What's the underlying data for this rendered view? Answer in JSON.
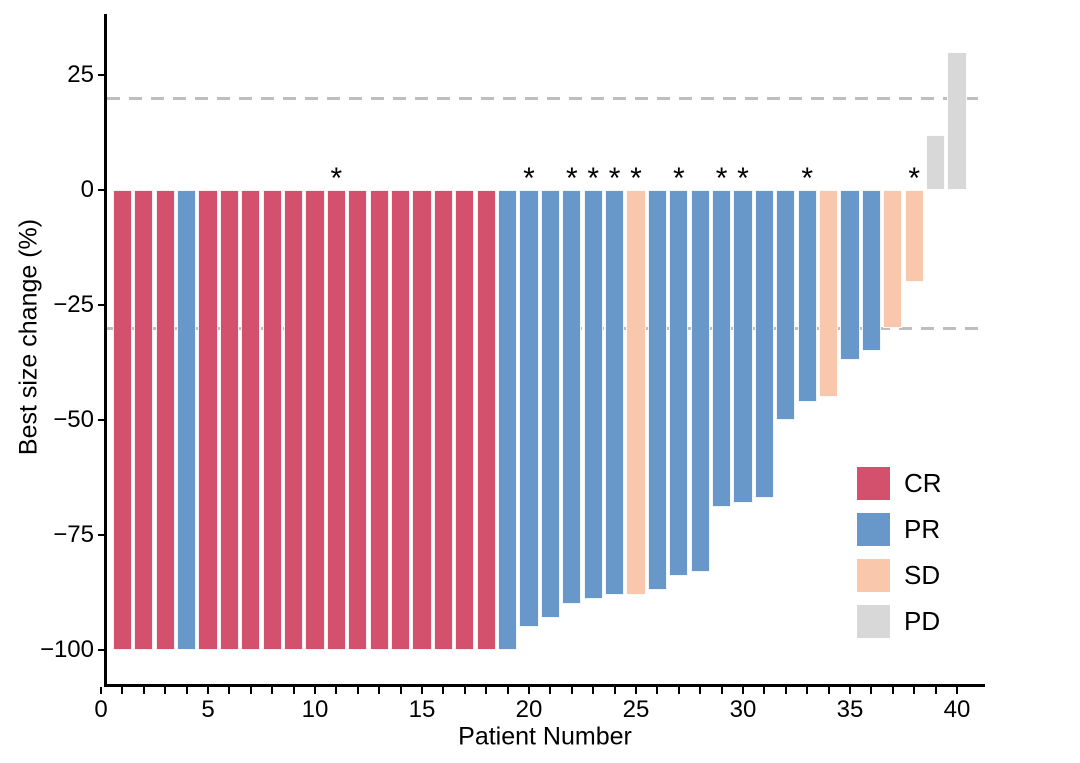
{
  "chart_data": {
    "type": "bar",
    "variant": "waterfall",
    "title": "",
    "xlabel": "Patient Number",
    "ylabel": "Best size change (%)",
    "xlim": [
      0,
      41.2
    ],
    "ylim": [
      -107.5,
      38
    ],
    "grid": false,
    "x_major_ticks": [
      0,
      5,
      10,
      15,
      20,
      25,
      30,
      35,
      40
    ],
    "x_minor_tick_every": 1,
    "x_minor_tick_range": [
      0,
      40
    ],
    "y_ticks": [
      25,
      0,
      -25,
      -50,
      -75,
      -100
    ],
    "y_tick_labels": [
      "25",
      "0",
      "−25",
      "−50",
      "−75",
      "−100"
    ],
    "reference_lines": {
      "upper": 20,
      "lower": -30,
      "style": "dashed",
      "color": "#BEBEBE"
    },
    "annotation_symbol": "*",
    "starred_patients": [
      11,
      20,
      22,
      23,
      24,
      25,
      27,
      29,
      30,
      33,
      38
    ],
    "response_colors": {
      "CR": "#D4516E",
      "PR": "#6898C9",
      "SD": "#F8C7AC",
      "PD": "#D8D8D8"
    },
    "legend": {
      "position": "right-middle",
      "entries": [
        {
          "label": "CR",
          "color": "#D4516E"
        },
        {
          "label": "PR",
          "color": "#6898C9"
        },
        {
          "label": "SD",
          "color": "#F8C7AC"
        },
        {
          "label": "PD",
          "color": "#D8D8D8"
        }
      ]
    },
    "series": [
      {
        "name": "Best size change (%)",
        "points": [
          {
            "patient": 1,
            "value": -100,
            "response": "CR",
            "star": false
          },
          {
            "patient": 2,
            "value": -100,
            "response": "CR",
            "star": false
          },
          {
            "patient": 3,
            "value": -100,
            "response": "CR",
            "star": false
          },
          {
            "patient": 4,
            "value": -100,
            "response": "PR",
            "star": false
          },
          {
            "patient": 5,
            "value": -100,
            "response": "CR",
            "star": false
          },
          {
            "patient": 6,
            "value": -100,
            "response": "CR",
            "star": false
          },
          {
            "patient": 7,
            "value": -100,
            "response": "CR",
            "star": false
          },
          {
            "patient": 8,
            "value": -100,
            "response": "CR",
            "star": false
          },
          {
            "patient": 9,
            "value": -100,
            "response": "CR",
            "star": false
          },
          {
            "patient": 10,
            "value": -100,
            "response": "CR",
            "star": false
          },
          {
            "patient": 11,
            "value": -100,
            "response": "CR",
            "star": true
          },
          {
            "patient": 12,
            "value": -100,
            "response": "CR",
            "star": false
          },
          {
            "patient": 13,
            "value": -100,
            "response": "CR",
            "star": false
          },
          {
            "patient": 14,
            "value": -100,
            "response": "CR",
            "star": false
          },
          {
            "patient": 15,
            "value": -100,
            "response": "CR",
            "star": false
          },
          {
            "patient": 16,
            "value": -100,
            "response": "CR",
            "star": false
          },
          {
            "patient": 17,
            "value": -100,
            "response": "CR",
            "star": false
          },
          {
            "patient": 18,
            "value": -100,
            "response": "CR",
            "star": false
          },
          {
            "patient": 19,
            "value": -100,
            "response": "PR",
            "star": false
          },
          {
            "patient": 20,
            "value": -95,
            "response": "PR",
            "star": true
          },
          {
            "patient": 21,
            "value": -93,
            "response": "PR",
            "star": false
          },
          {
            "patient": 22,
            "value": -90,
            "response": "PR",
            "star": true
          },
          {
            "patient": 23,
            "value": -89,
            "response": "PR",
            "star": true
          },
          {
            "patient": 24,
            "value": -88,
            "response": "PR",
            "star": true
          },
          {
            "patient": 25,
            "value": -88,
            "response": "SD",
            "star": true
          },
          {
            "patient": 26,
            "value": -87,
            "response": "PR",
            "star": false
          },
          {
            "patient": 27,
            "value": -84,
            "response": "PR",
            "star": true
          },
          {
            "patient": 28,
            "value": -83,
            "response": "PR",
            "star": false
          },
          {
            "patient": 29,
            "value": -69,
            "response": "PR",
            "star": true
          },
          {
            "patient": 30,
            "value": -68,
            "response": "PR",
            "star": true
          },
          {
            "patient": 31,
            "value": -67,
            "response": "PR",
            "star": false
          },
          {
            "patient": 32,
            "value": -50,
            "response": "PR",
            "star": false
          },
          {
            "patient": 33,
            "value": -46,
            "response": "PR",
            "star": true
          },
          {
            "patient": 34,
            "value": -45,
            "response": "SD",
            "star": false
          },
          {
            "patient": 35,
            "value": -37,
            "response": "PR",
            "star": false
          },
          {
            "patient": 36,
            "value": -35,
            "response": "PR",
            "star": false
          },
          {
            "patient": 37,
            "value": -30,
            "response": "SD",
            "star": false
          },
          {
            "patient": 38,
            "value": -20,
            "response": "SD",
            "star": true
          },
          {
            "patient": 39,
            "value": 12,
            "response": "PD",
            "star": false
          },
          {
            "patient": 40,
            "value": 30,
            "response": "PD",
            "star": false
          }
        ]
      }
    ]
  }
}
